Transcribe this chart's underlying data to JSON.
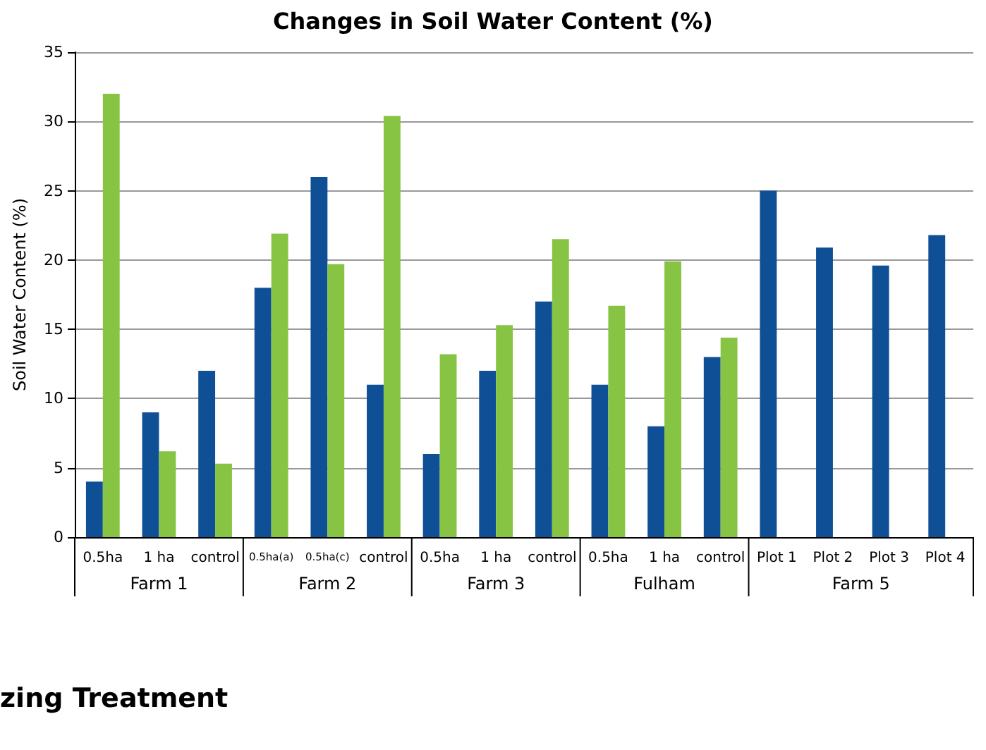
{
  "chart_data": {
    "type": "bar",
    "title": "Changes in Soil Water Content (%)",
    "ylabel": "Soil Water Content (%)",
    "categories": [
      "0.5ha",
      "1 ha",
      "control",
      "0.5ha(a)",
      "0.5ha(c)",
      "control",
      "0.5ha",
      "1 ha",
      "control",
      "0.5ha",
      "1 ha",
      "control",
      "Plot 1",
      "Plot 2",
      "Plot 3",
      "Plot 4"
    ],
    "series": [
      {
        "color": "#0f4f96",
        "values": [
          4,
          9,
          12,
          18,
          26,
          11,
          6,
          12,
          17,
          11,
          8,
          13,
          25,
          20.9,
          19.6,
          21.8
        ]
      },
      {
        "color": "#88c444",
        "values": [
          32,
          6.2,
          5.3,
          21.9,
          19.7,
          30.4,
          13.2,
          15.3,
          21.5,
          16.7,
          19.9,
          14.4,
          null,
          null,
          null,
          null
        ]
      }
    ],
    "annotations": [
      "Farm 1",
      "Farm 2",
      "Farm 3",
      "Fulham",
      "Farm 5",
      "zing Treatment"
    ],
    "ylim": [
      0,
      35
    ],
    "yticks": [
      0,
      5,
      10,
      15,
      20,
      25,
      30,
      35
    ],
    "grid": "y"
  }
}
